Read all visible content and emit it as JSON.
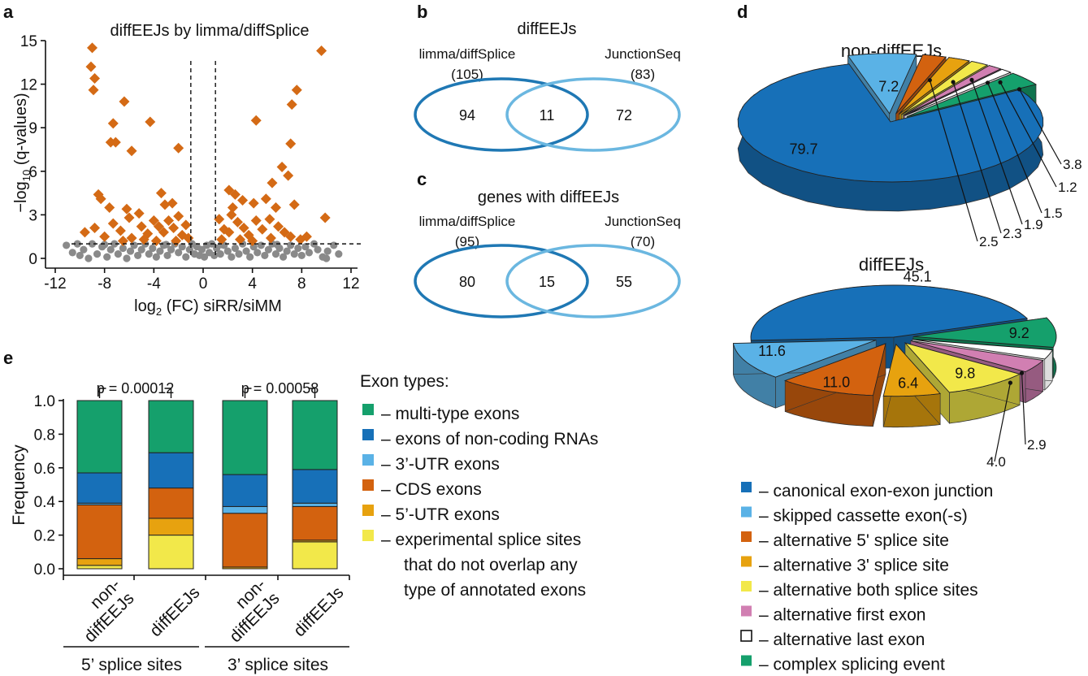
{
  "colors": {
    "orange": "#d46a15",
    "grey": "#8a8a8a",
    "venn_dark": "#1f78b4",
    "venn_light": "#6bb7e0",
    "multi_type": "#15a06c",
    "noncoding": "#1770b8",
    "utr3": "#5ab2e6",
    "cds": "#d3620f",
    "utr5": "#e7a20f",
    "experimental": "#f2e84a",
    "pink": "#d17fb2",
    "white": "#ffffff"
  },
  "chart_data": [
    {
      "panel": "a",
      "type": "scatter",
      "title": "diffEEJs by limma/diffSplice",
      "xlabel_pre": "log",
      "xlabel_sub": "2",
      "xlabel_post": " (FC) siRR/siMM",
      "ylabel_pre": "−log",
      "ylabel_sub": "10",
      "ylabel_post": " (q-values)",
      "xlim": [
        -12,
        12
      ],
      "ylim": [
        0,
        15
      ],
      "xticks": [
        -12,
        -8,
        -4,
        0,
        4,
        8,
        12
      ],
      "yticks": [
        0,
        3,
        6,
        9,
        12,
        15
      ],
      "thresholds": {
        "log2fc": [
          -1,
          1
        ],
        "neglog10q": 1
      },
      "series": [
        {
          "class": "significant",
          "marker": "diamond",
          "points": [
            [
              -9.0,
              14.5
            ],
            [
              -9.1,
              13.2
            ],
            [
              -8.8,
              12.4
            ],
            [
              -8.9,
              11.6
            ],
            [
              -6.4,
              10.8
            ],
            [
              -7.3,
              9.3
            ],
            [
              -4.3,
              9.4
            ],
            [
              -7.5,
              8.0
            ],
            [
              -7.1,
              8.0
            ],
            [
              -5.8,
              7.4
            ],
            [
              -2.0,
              7.6
            ],
            [
              -8.5,
              4.4
            ],
            [
              -8.3,
              4.1
            ],
            [
              -7.6,
              3.5
            ],
            [
              -6.2,
              3.4
            ],
            [
              -6.0,
              2.8
            ],
            [
              -5.2,
              3.1
            ],
            [
              -3.4,
              4.5
            ],
            [
              -3.1,
              3.7
            ],
            [
              -2.5,
              3.8
            ],
            [
              -9.6,
              1.8
            ],
            [
              -8.8,
              2.1
            ],
            [
              -8.0,
              1.5
            ],
            [
              -7.3,
              2.4
            ],
            [
              -6.7,
              1.9
            ],
            [
              -5.8,
              1.4
            ],
            [
              -5.0,
              2.2
            ],
            [
              -4.5,
              1.7
            ],
            [
              -4.0,
              2.6
            ],
            [
              -3.6,
              2.2
            ],
            [
              -3.2,
              1.8
            ],
            [
              -2.8,
              2.6
            ],
            [
              -2.4,
              2.1
            ],
            [
              -2.0,
              2.9
            ],
            [
              -1.7,
              1.6
            ],
            [
              -1.4,
              2.3
            ],
            [
              -1.2,
              1.4
            ],
            [
              -6.5,
              1.2
            ],
            [
              -4.8,
              1.3
            ],
            [
              -3.8,
              1.2
            ],
            [
              -2.2,
              1.2
            ],
            [
              7.2,
              10.6
            ],
            [
              9.6,
              14.3
            ],
            [
              7.6,
              11.6
            ],
            [
              4.3,
              9.5
            ],
            [
              7.1,
              7.9
            ],
            [
              6.4,
              6.3
            ],
            [
              5.6,
              5.2
            ],
            [
              6.9,
              5.7
            ],
            [
              2.1,
              4.7
            ],
            [
              2.6,
              4.4
            ],
            [
              3.2,
              4.0
            ],
            [
              2.4,
              3.5
            ],
            [
              4.1,
              3.8
            ],
            [
              5.1,
              4.1
            ],
            [
              5.9,
              3.5
            ],
            [
              7.4,
              3.7
            ],
            [
              9.9,
              2.8
            ],
            [
              1.3,
              2.7
            ],
            [
              1.7,
              2.0
            ],
            [
              2.1,
              1.8
            ],
            [
              2.8,
              2.5
            ],
            [
              3.3,
              2.1
            ],
            [
              3.7,
              1.6
            ],
            [
              4.3,
              2.6
            ],
            [
              4.8,
              2.0
            ],
            [
              5.4,
              2.7
            ],
            [
              6.1,
              2.2
            ],
            [
              6.6,
              1.8
            ],
            [
              7.1,
              1.5
            ],
            [
              7.9,
              1.3
            ],
            [
              3.0,
              1.3
            ],
            [
              4.0,
              1.2
            ],
            [
              5.5,
              1.4
            ],
            [
              1.5,
              1.3
            ],
            [
              2.3,
              3.0
            ],
            [
              8.4,
              1.5
            ]
          ]
        },
        {
          "class": "non-significant",
          "marker": "circle",
          "points": [
            [
              -11.1,
              0.9
            ],
            [
              -10.6,
              0.4
            ],
            [
              -10.2,
              1.0
            ],
            [
              -9.7,
              0.6
            ],
            [
              -9.3,
              0.0
            ],
            [
              -9.0,
              1.0
            ],
            [
              -8.6,
              0.3
            ],
            [
              -8.2,
              0.8
            ],
            [
              -7.8,
              0.1
            ],
            [
              -7.5,
              0.6
            ],
            [
              -7.2,
              1.0
            ],
            [
              -6.9,
              0.3
            ],
            [
              -6.5,
              0.7
            ],
            [
              -6.2,
              0.0
            ],
            [
              -5.9,
              0.5
            ],
            [
              -5.6,
              0.9
            ],
            [
              -5.3,
              0.2
            ],
            [
              -5.0,
              0.6
            ],
            [
              -4.7,
              1.0
            ],
            [
              -4.4,
              0.3
            ],
            [
              -4.1,
              0.7
            ],
            [
              -3.8,
              0.1
            ],
            [
              -3.5,
              0.5
            ],
            [
              -3.2,
              0.9
            ],
            [
              -2.9,
              0.2
            ],
            [
              -2.6,
              0.6
            ],
            [
              -2.3,
              1.0
            ],
            [
              -2.0,
              0.4
            ],
            [
              -1.7,
              0.8
            ],
            [
              -1.4,
              0.1
            ],
            [
              -1.1,
              0.6
            ],
            [
              -0.9,
              1.0
            ],
            [
              -0.7,
              0.3
            ],
            [
              -0.5,
              0.8
            ],
            [
              -0.3,
              0.2
            ],
            [
              -0.1,
              0.6
            ],
            [
              0.1,
              0.1
            ],
            [
              0.3,
              0.9
            ],
            [
              0.5,
              0.4
            ],
            [
              0.7,
              1.0
            ],
            [
              0.9,
              0.2
            ],
            [
              1.1,
              0.7
            ],
            [
              1.4,
              0.3
            ],
            [
              1.7,
              0.9
            ],
            [
              2.0,
              0.5
            ],
            [
              2.3,
              0.1
            ],
            [
              2.6,
              0.7
            ],
            [
              2.9,
              0.3
            ],
            [
              3.2,
              1.0
            ],
            [
              3.5,
              0.5
            ],
            [
              3.8,
              0.1
            ],
            [
              4.1,
              0.8
            ],
            [
              4.4,
              0.4
            ],
            [
              4.7,
              0.9
            ],
            [
              5.0,
              0.2
            ],
            [
              5.3,
              0.6
            ],
            [
              5.6,
              1.0
            ],
            [
              5.9,
              0.3
            ],
            [
              6.2,
              0.7
            ],
            [
              6.5,
              0.1
            ],
            [
              6.8,
              0.5
            ],
            [
              7.1,
              0.9
            ],
            [
              7.4,
              0.3
            ],
            [
              7.7,
              0.7
            ],
            [
              8.0,
              0.2
            ],
            [
              8.3,
              0.8
            ],
            [
              8.6,
              0.4
            ],
            [
              9.0,
              1.0
            ],
            [
              9.3,
              0.6
            ],
            [
              9.7,
              0.1
            ],
            [
              10.1,
              0.5
            ],
            [
              10.6,
              0.9
            ],
            [
              11.0,
              0.3
            ],
            [
              -8.0,
              0.95
            ],
            [
              -3.0,
              0.95
            ],
            [
              1.5,
              0.95
            ],
            [
              6.0,
              0.95
            ],
            [
              -10.0,
              0.2
            ],
            [
              10.0,
              0.0
            ]
          ]
        }
      ]
    },
    {
      "panel": "b",
      "type": "venn",
      "title": "diffEEJs",
      "sets": [
        {
          "name": "limma/diffSplice",
          "total": "(105)",
          "only": "94"
        },
        {
          "name": "JunctionSeq",
          "total": "(83)",
          "only": "72"
        }
      ],
      "overlap": "11"
    },
    {
      "panel": "c",
      "type": "venn",
      "title": "genes with diffEEJs",
      "sets": [
        {
          "name": "limma/diffSplice",
          "total": "(95)",
          "only": "80"
        },
        {
          "name": "JunctionSeq",
          "total": "(70)",
          "only": "55"
        }
      ],
      "overlap": "15"
    },
    {
      "panel": "d",
      "type": "pie",
      "charts": [
        {
          "title": "non-diffEEJs",
          "slices": [
            {
              "category": "canonical",
              "value": 79.7,
              "label": "79.7"
            },
            {
              "category": "skipped",
              "value": 7.2,
              "label": "7.2"
            },
            {
              "category": "alt5",
              "value": 2.5,
              "label": "2.5"
            },
            {
              "category": "alt3",
              "value": 2.3,
              "label": "2.3"
            },
            {
              "category": "altboth",
              "value": 1.9,
              "label": "1.9"
            },
            {
              "category": "altfirst",
              "value": 1.5,
              "label": "1.5"
            },
            {
              "category": "altlast",
              "value": 1.2,
              "label": "1.2"
            },
            {
              "category": "complex",
              "value": 3.8,
              "label": "3.8"
            }
          ]
        },
        {
          "title": "diffEEJs",
          "slices": [
            {
              "category": "canonical",
              "value": 45.1,
              "label": "45.1"
            },
            {
              "category": "complex",
              "value": 9.2,
              "label": "9.2"
            },
            {
              "category": "altlast",
              "value": 2.9,
              "label": "2.9"
            },
            {
              "category": "altfirst",
              "value": 4.0,
              "label": "4.0"
            },
            {
              "category": "altboth",
              "value": 9.8,
              "label": "9.8"
            },
            {
              "category": "alt3",
              "value": 6.4,
              "label": "6.4"
            },
            {
              "category": "alt5",
              "value": 11.0,
              "label": "11.0"
            },
            {
              "category": "skipped",
              "value": 11.6,
              "label": "11.6"
            }
          ]
        }
      ],
      "legend": [
        {
          "category": "canonical",
          "label": "– canonical exon-exon junction"
        },
        {
          "category": "skipped",
          "label": "– skipped cassette exon(-s)"
        },
        {
          "category": "alt5",
          "label": "– alternative 5' splice site"
        },
        {
          "category": "alt3",
          "label": "– alternative 3' splice site"
        },
        {
          "category": "altboth",
          "label": "– alternative both splice sites"
        },
        {
          "category": "altfirst",
          "label": "– alternative first exon"
        },
        {
          "category": "altlast",
          "label": "– alternative last exon"
        },
        {
          "category": "complex",
          "label": "– complex splicing event"
        }
      ]
    },
    {
      "panel": "e",
      "type": "bar",
      "stacked": true,
      "ylabel": "Frequency",
      "ylim": [
        0,
        1.0
      ],
      "yticks": [
        "0.0",
        "0.2",
        "0.4",
        "0.6",
        "0.8",
        "1.0"
      ],
      "categories": [
        {
          "label": [
            "non-",
            "diffEEJs"
          ],
          "group": 0
        },
        {
          "label": [
            "diffEEJs"
          ],
          "group": 0
        },
        {
          "label": [
            "non-",
            "diffEEJs"
          ],
          "group": 1
        },
        {
          "label": [
            "diffEEJs"
          ],
          "group": 1
        }
      ],
      "groups": [
        "5’ splice sites",
        "3’ splice sites"
      ],
      "pvalues": [
        "p = 0.00012",
        "p = 0.00058"
      ],
      "series": [
        {
          "key": "experimental",
          "values": [
            0.02,
            0.2,
            0.0,
            0.16
          ]
        },
        {
          "key": "utr5",
          "values": [
            0.04,
            0.1,
            0.01,
            0.01
          ]
        },
        {
          "key": "cds",
          "values": [
            0.32,
            0.18,
            0.32,
            0.2
          ]
        },
        {
          "key": "utr3",
          "values": [
            0.01,
            0.0,
            0.04,
            0.02
          ]
        },
        {
          "key": "noncoding",
          "values": [
            0.18,
            0.21,
            0.19,
            0.2
          ]
        },
        {
          "key": "multi_type",
          "values": [
            0.43,
            0.31,
            0.44,
            0.41
          ]
        }
      ],
      "legend_title": "Exon types:",
      "legend": [
        {
          "key": "multi_type",
          "lines": [
            "– multi-type exons"
          ]
        },
        {
          "key": "noncoding",
          "lines": [
            "– exons of non-coding RNAs"
          ]
        },
        {
          "key": "utr3",
          "lines": [
            "– 3’-UTR exons"
          ]
        },
        {
          "key": "cds",
          "lines": [
            "– CDS exons"
          ]
        },
        {
          "key": "utr5",
          "lines": [
            "– 5’-UTR exons"
          ]
        },
        {
          "key": "experimental",
          "lines": [
            "– experimental splice sites",
            "that do not overlap any",
            "type of annotated exons"
          ]
        }
      ]
    }
  ],
  "panel_letters": [
    "a",
    "b",
    "c",
    "d",
    "e"
  ]
}
